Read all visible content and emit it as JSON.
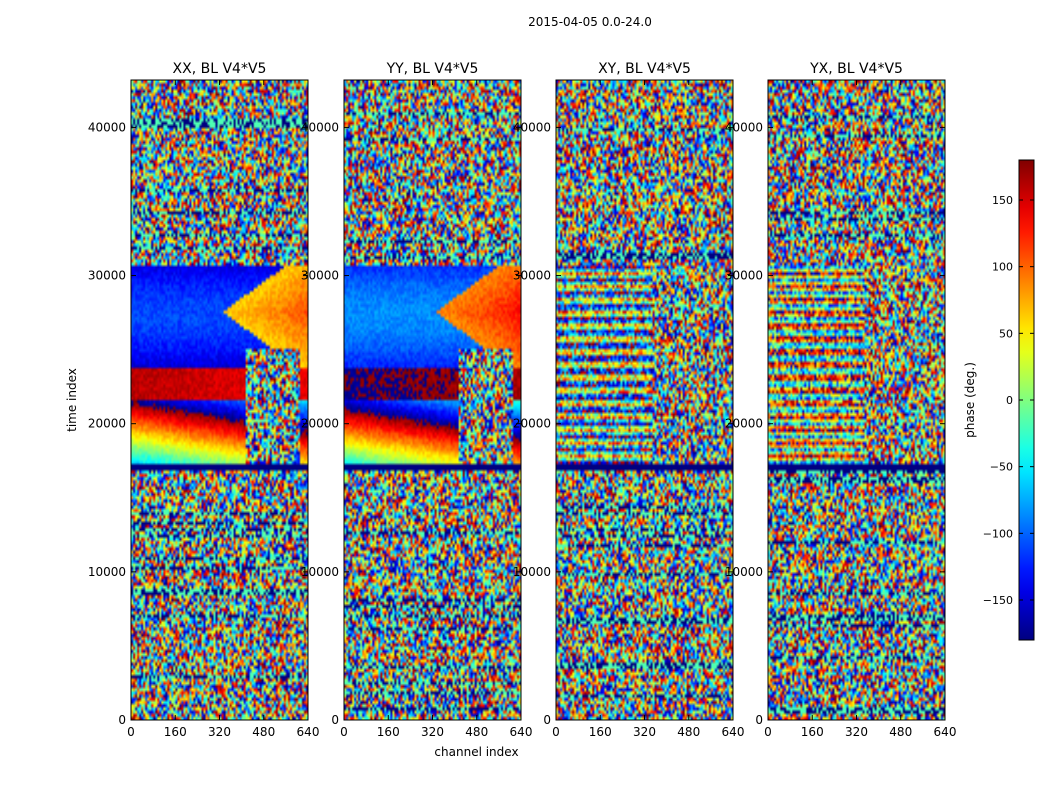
{
  "figure": {
    "suptitle": "2015-04-05 0.0-24.0"
  },
  "chart_data": {
    "type": "heatmap",
    "panels": [
      {
        "title": "XX, BL V4*V5",
        "phase_profile": "XX",
        "show_y_label": true,
        "show_x_label": false
      },
      {
        "title": "YY, BL V4*V5",
        "phase_profile": "YY",
        "show_y_label": false,
        "show_x_label": true
      },
      {
        "title": "XY, BL V4*V5",
        "phase_profile": "XY",
        "show_y_label": false,
        "show_x_label": false
      },
      {
        "title": "YX, BL V4*V5",
        "phase_profile": "YX",
        "show_y_label": false,
        "show_x_label": false
      }
    ],
    "xlabel": "channel index",
    "ylabel": "time index",
    "xlim": [
      0,
      640
    ],
    "ylim": [
      0,
      43200
    ],
    "xticks": [
      0,
      160,
      320,
      480,
      640
    ],
    "yticks": [
      0,
      10000,
      20000,
      30000,
      40000
    ],
    "colorbar": {
      "label": "phase (deg.)",
      "range": [
        -180,
        180
      ],
      "ticks": [
        150,
        100,
        50,
        0,
        -50,
        -100,
        -150
      ],
      "tick_labels": [
        "150",
        "100",
        "50",
        "0",
        "−50",
        "−100",
        "−150"
      ],
      "colormap": "jet"
    },
    "data_segments": [
      {
        "from": 0,
        "to": 16800,
        "content": "noise"
      },
      {
        "from": 16800,
        "to": 17200,
        "content": "flagged"
      },
      {
        "from": 17200,
        "to": 30600,
        "content": "fringe"
      },
      {
        "from": 30600,
        "to": 43200,
        "content": "noise"
      }
    ]
  }
}
